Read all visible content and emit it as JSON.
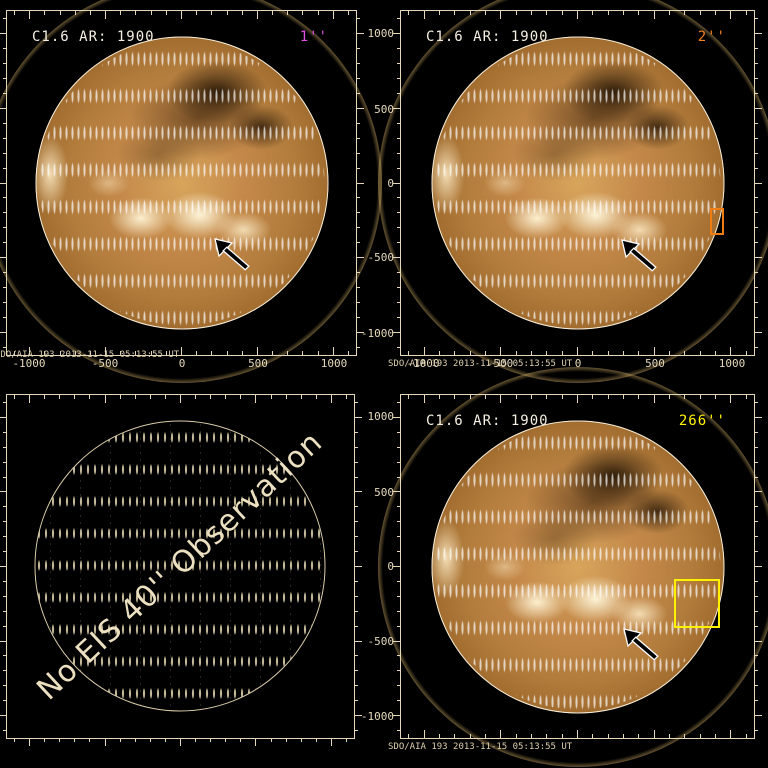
{
  "colors": {
    "frame": "#E4D8B8",
    "title": "#F4EFE1",
    "timestamp": "#DCCFAF",
    "res_1arcsec": "#E24FE2",
    "res_2arcsec": "#F08122",
    "res_266arcsec": "#FFF200",
    "roi_orange": "#F07D14",
    "roi_yellow": "#FFF200",
    "globe_text": "#ECE0C1"
  },
  "shared": {
    "title": "C1.6 AR: 1900",
    "timestamp": "SDO/AIA 193  2013-11-15 05:13:55 UT",
    "x_tick_labels": [
      "-1000",
      "-500",
      "0",
      "500",
      "1000"
    ],
    "y_tick_labels": [
      "1000",
      "500",
      "0",
      "-500",
      "-1000"
    ]
  },
  "panels": {
    "top_left": {
      "resolution": "1''"
    },
    "top_right": {
      "resolution": "2''"
    },
    "bottom_left": {
      "message": "No EIS 40'' Observation"
    },
    "bottom_right": {
      "resolution": "266''"
    }
  },
  "chart_data": [
    {
      "type": "heatmap",
      "panel": "top-left",
      "title": "C1.6 AR: 1900",
      "slit_label": "1''",
      "caption": "SDO/AIA 193  2013-11-15 05:13:55 UT",
      "xlim": [
        -1150,
        1150
      ],
      "ylim": [
        -1150,
        1150
      ],
      "x_ticks": [
        -1000,
        -500,
        0,
        500,
        1000
      ],
      "y_ticks": [
        -1000,
        -500,
        0,
        500,
        1000
      ],
      "y_tick_labels_visible": false,
      "annotations": [
        "black arrow pointing to active region near (230, -380) arcsec"
      ]
    },
    {
      "type": "heatmap",
      "panel": "top-right",
      "title": "C1.6 AR: 1900",
      "slit_label": "2''",
      "caption": "SDO/AIA 193  2013-11-15 05:13:55 UT",
      "xlim": [
        -1150,
        1150
      ],
      "ylim": [
        -1150,
        1150
      ],
      "x_ticks": [
        -1000,
        -500,
        0,
        500,
        1000
      ],
      "y_ticks": [
        -1000,
        -500,
        0,
        500,
        1000
      ],
      "roi_box_arcsec": {
        "x": [
          865,
          945
        ],
        "y": [
          -395,
          -230
        ],
        "color": "#F07D14"
      },
      "annotations": [
        "black arrow pointing to active region near (230, -380) arcsec"
      ]
    },
    {
      "type": "heatmap",
      "panel": "bottom-left",
      "title": "",
      "message": "No EIS 40'' Observation",
      "xlim": [
        -1150,
        1150
      ],
      "ylim": [
        -1150,
        1150
      ],
      "content": "empty wireframe solar globe, no image data"
    },
    {
      "type": "heatmap",
      "panel": "bottom-right",
      "title": "C1.6 AR: 1900",
      "slit_label": "266''",
      "caption": "SDO/AIA 193  2013-11-15 05:13:55 UT",
      "xlim": [
        -1150,
        1150
      ],
      "ylim": [
        -1150,
        1150
      ],
      "y_ticks": [
        -1000,
        -500,
        0,
        500,
        1000
      ],
      "x_tick_labels_visible": false,
      "roi_box_arcsec": {
        "x": [
          625,
          923
        ],
        "y": [
          -410,
          -85
        ],
        "color": "#FFF200"
      },
      "annotations": [
        "black arrow pointing to active region near (230, -380) arcsec"
      ]
    }
  ]
}
